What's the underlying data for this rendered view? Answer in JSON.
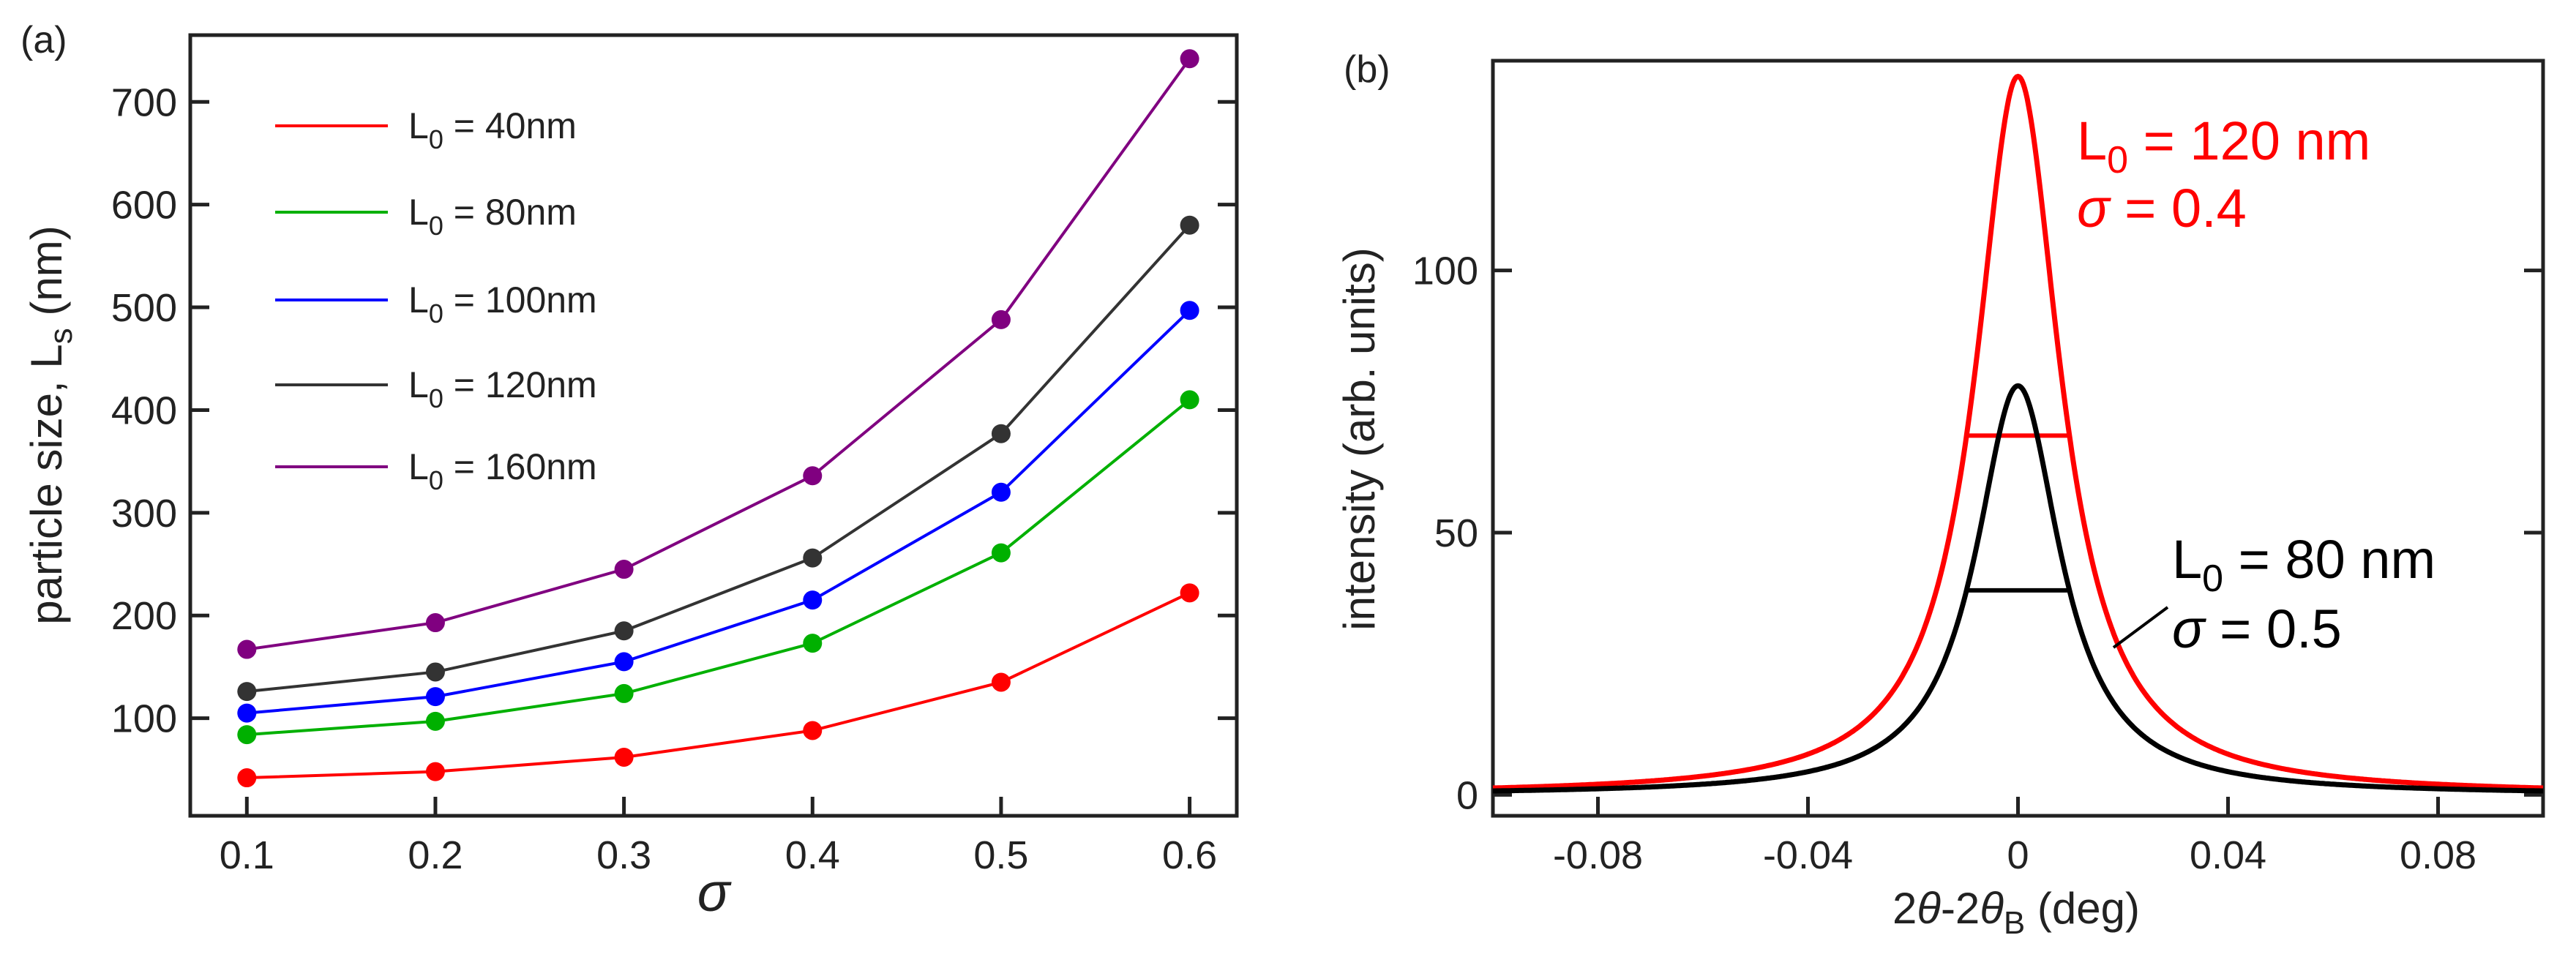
{
  "chart_data": [
    {
      "type": "line",
      "panel_label": "(a)",
      "xlabel": "σ",
      "ylabel": "particle size, L",
      "ylabel_sub": "s",
      "ylabel_unit": " (nm)",
      "xlim": [
        0.07,
        0.625
      ],
      "ylim": [
        5,
        765
      ],
      "xticks": [
        0.1,
        0.2,
        0.3,
        0.4,
        0.5,
        0.6
      ],
      "xtick_labels": [
        "0.1",
        "0.2",
        "0.3",
        "0.4",
        "0.5",
        "0.6"
      ],
      "yticks": [
        100,
        200,
        300,
        400,
        500,
        600,
        700
      ],
      "ytick_labels": [
        "100",
        "200",
        "300",
        "400",
        "500",
        "600",
        "700"
      ],
      "legend_position": "top-left",
      "x": [
        0.1,
        0.2,
        0.3,
        0.4,
        0.5,
        0.6
      ],
      "series": [
        {
          "name": "L",
          "sub": "0",
          "rest": " = 40nm",
          "color": "#ff0000",
          "values": [
            42,
            48,
            62,
            88,
            135,
            222
          ]
        },
        {
          "name": "L",
          "sub": "0",
          "rest": " = 80nm",
          "color": "#00b000",
          "values": [
            84,
            97,
            124,
            173,
            261,
            410
          ]
        },
        {
          "name": "L",
          "sub": "0",
          "rest": " = 100nm",
          "color": "#0000ff",
          "values": [
            105,
            121,
            155,
            215,
            320,
            497
          ]
        },
        {
          "name": "L",
          "sub": "0",
          "rest": " = 120nm",
          "color": "#333333",
          "values": [
            126,
            145,
            185,
            256,
            377,
            580
          ]
        },
        {
          "name": "L",
          "sub": "0",
          "rest": " = 160nm",
          "color": "#800080",
          "values": [
            167,
            193,
            245,
            336,
            488,
            742
          ]
        }
      ]
    },
    {
      "type": "line",
      "panel_label": "(b)",
      "xlabel_parts": [
        "2",
        "θ",
        "-2",
        "θ",
        "B",
        "  (deg)"
      ],
      "ylabel": "intensity (arb. units)",
      "xlim": [
        -0.1,
        0.1
      ],
      "ylim": [
        -4,
        140
      ],
      "xticks": [
        -0.08,
        -0.04,
        0,
        0.04,
        0.08
      ],
      "xtick_labels": [
        "-0.08",
        "-0.04",
        "0",
        "0.04",
        "0.08"
      ],
      "yticks": [
        0,
        50,
        100
      ],
      "ytick_labels": [
        "0",
        "50",
        "100"
      ],
      "series": [
        {
          "name": "L0 = 120 nm, σ = 0.4",
          "color": "#ff0000",
          "peak": 137,
          "half_width": 0.0098,
          "fwhm_level": 68.5
        },
        {
          "name": "L0 = 80 nm, σ = 0.5",
          "color": "#000000",
          "peak": 78,
          "half_width": 0.0098,
          "fwhm_level": 39
        }
      ],
      "annotations": [
        {
          "line1_main": "L",
          "line1_sub": "0",
          "line1_rest": " = 120 nm",
          "line2_sym": "σ",
          "line2_rest": " = 0.4",
          "color": "#ff0000"
        },
        {
          "line1_main": "L",
          "line1_sub": "0",
          "line1_rest": " = 80 nm",
          "line2_sym": "σ",
          "line2_rest": " = 0.5",
          "color": "#000000"
        }
      ]
    }
  ]
}
